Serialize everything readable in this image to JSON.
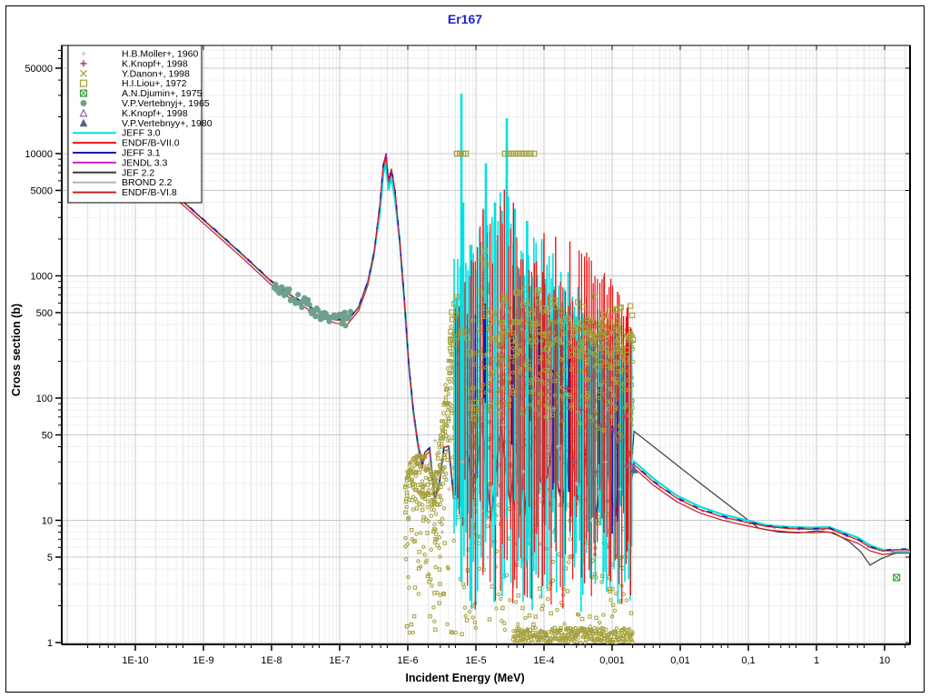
{
  "title": {
    "text": "Er167",
    "color": "#2222CC"
  },
  "axes": {
    "x": {
      "label": "Incident Energy (MeV)",
      "scale": "log",
      "range_log10": [
        -11.08,
        1.373
      ],
      "tick_labels": [
        "1E-10",
        "1E-9",
        "1E-8",
        "1E-7",
        "1E-6",
        "1E-5",
        "1E-4",
        "0,001",
        "0,01",
        "0,1",
        "1",
        "10"
      ],
      "tick_values": [
        1e-10,
        1e-09,
        1e-08,
        1e-07,
        1e-06,
        1e-05,
        0.0001,
        0.001,
        0.01,
        0.1,
        1,
        10
      ]
    },
    "y": {
      "label": "Cross section (b)",
      "scale": "log",
      "range_log10": [
        -0.0149,
        4.885
      ],
      "tick_labels": [
        "50000",
        "10000",
        "5000",
        "1000",
        "500",
        "100",
        "50",
        "10",
        "5",
        "1"
      ],
      "tick_values": [
        50000,
        10000,
        5000,
        1000,
        500,
        100,
        50,
        10,
        5,
        1
      ]
    }
  },
  "legend": {
    "entries": [
      {
        "label": "H.B.Moller+, 1960",
        "type": "marker",
        "marker": "plus-small",
        "color": "#B8B8B8"
      },
      {
        "label": "K.Knopf+, 1998",
        "type": "marker",
        "marker": "plus",
        "color": "#B0485C"
      },
      {
        "label": "Y.Danon+, 1998",
        "type": "marker",
        "marker": "x",
        "color": "#A3A03C"
      },
      {
        "label": "H.I.Liou+, 1972",
        "type": "marker",
        "marker": "square-open",
        "color": "#A3A03C"
      },
      {
        "label": "A.N.Djumin+, 1975",
        "type": "marker",
        "marker": "square-x",
        "color": "#3FA03F"
      },
      {
        "label": "V.P.Vertebnyj+, 1965",
        "type": "marker",
        "marker": "circle-fill",
        "color": "#6FA08F"
      },
      {
        "label": "K.Knopf+, 1998",
        "type": "marker",
        "marker": "tri-open",
        "color": "#9060B0"
      },
      {
        "label": "V.P.Vertebnyy+, 1980",
        "type": "marker",
        "marker": "tri-fill",
        "color": "#50648E"
      },
      {
        "label": "JEFF 3.0",
        "type": "line",
        "color": "#00E0E0"
      },
      {
        "label": "ENDF/B-VII.0",
        "type": "line",
        "color": "#EE1111"
      },
      {
        "label": "JEFF 3.1",
        "type": "line",
        "color": "#1515B5"
      },
      {
        "label": "JENDL 3.3",
        "type": "line",
        "color": "#CC22CC"
      },
      {
        "label": "JEF 2.2",
        "type": "line",
        "color": "#3C3C3C"
      },
      {
        "label": "BROND 2.2",
        "type": "line",
        "color": "#B5B5B5"
      },
      {
        "label": "ENDF/B-VI.8",
        "type": "line",
        "color": "#C42020"
      }
    ]
  },
  "chart_data": {
    "type": "line+scatter",
    "title": "Er167",
    "xlabel": "Incident Energy (MeV)",
    "ylabel": "Cross section (b)",
    "xlim": [
      8.3e-12,
      23.6
    ],
    "ylim": [
      0.97,
      76700
    ],
    "grid": "log-log, minor gridlines at 2 and 5 per decade",
    "legend_position": "top-left inside plot",
    "rng_seed": 987654321,
    "backbone_shared_by_libraries": [
      [
        2e-10,
        6400
      ],
      [
        5.2e-10,
        3970
      ],
      [
        1.63e-09,
        2254
      ],
      [
        4.1e-09,
        1420
      ],
      [
        1e-08,
        895
      ],
      [
        1.9e-08,
        695
      ],
      [
        3.5e-08,
        563
      ],
      [
        5.6e-08,
        483
      ],
      [
        8.8e-08,
        436
      ],
      [
        1.32e-07,
        432
      ],
      [
        1.9e-07,
        554
      ],
      [
        2.6e-07,
        895
      ],
      [
        3.2e-07,
        1550
      ],
      [
        3.9e-07,
        3840
      ],
      [
        4.37e-07,
        8000
      ],
      [
        4.8e-07,
        10000
      ],
      [
        5.2e-07,
        5900
      ],
      [
        5.75e-07,
        7480
      ],
      [
        6.5e-07,
        4950
      ],
      [
        7.6e-07,
        1930
      ],
      [
        8.9e-07,
        635
      ],
      [
        1.03e-06,
        192
      ],
      [
        1.2e-06,
        81
      ],
      [
        1.4e-06,
        43
      ],
      [
        1.63e-06,
        28
      ]
    ],
    "resonance_floor": {
      "le": [
        -5.75,
        -2.72
      ],
      "ls_base": 1.42,
      "amp": 0.28,
      "step": 0.07
    },
    "series": [
      {
        "name": "JEFF 3.0",
        "color": "#00E0E0",
        "width": 2.2,
        "high_energy": [
          [
            0.0021,
            30.2
          ],
          [
            0.0041,
            21.8
          ],
          [
            0.0088,
            16.0
          ],
          [
            0.019,
            13.0
          ],
          [
            0.041,
            11.2
          ],
          [
            0.088,
            10.1
          ],
          [
            0.19,
            9.1
          ],
          [
            0.41,
            8.8
          ],
          [
            0.885,
            8.7
          ],
          [
            1.54,
            8.8
          ],
          [
            2.59,
            7.9
          ],
          [
            4.1,
            7.2
          ],
          [
            6.12,
            6.25
          ],
          [
            9.4,
            5.73
          ],
          [
            14.0,
            5.54
          ],
          [
            23.6,
            5.54
          ]
        ],
        "peak_value": 8500
      },
      {
        "name": "ENDF/B-VII.0",
        "color": "#EE1111",
        "width": 1.3,
        "high_energy": [
          [
            0.0021,
            28.5
          ],
          [
            0.0041,
            20.5
          ],
          [
            0.0088,
            15.2
          ],
          [
            0.019,
            12.3
          ],
          [
            0.041,
            10.7
          ],
          [
            0.088,
            9.7
          ],
          [
            0.19,
            8.9
          ],
          [
            0.41,
            8.55
          ],
          [
            0.885,
            8.45
          ],
          [
            1.54,
            8.55
          ],
          [
            2.59,
            7.6
          ],
          [
            4.1,
            6.9
          ],
          [
            6.12,
            6.0
          ],
          [
            9.4,
            5.6
          ],
          [
            14.0,
            5.75
          ],
          [
            23.6,
            5.75
          ]
        ],
        "peak_value": 10000
      },
      {
        "name": "JEFF 3.1",
        "color": "#1515B5",
        "width": 1.3,
        "dash": "6 11",
        "overlay_of": "ENDF/B-VII.0"
      },
      {
        "name": "JENDL 3.3",
        "color": "#CC22CC",
        "width": 1.2,
        "dash": "3 24",
        "overlay_of": "ENDF/B-VII.0"
      },
      {
        "name": "JEF 2.2",
        "color": "#3C3C3C",
        "width": 1.2,
        "high_energy": [
          [
            0.0021,
            53.5
          ],
          [
            0.019,
            20.4
          ],
          [
            0.14,
            8.65
          ],
          [
            0.284,
            8.0
          ],
          [
            0.558,
            7.9
          ],
          [
            1.03,
            8.2
          ],
          [
            1.79,
            7.9
          ],
          [
            3.02,
            6.7
          ],
          [
            4.5,
            5.5
          ],
          [
            6.12,
            4.3
          ],
          [
            8.85,
            4.85
          ],
          [
            14.0,
            5.35
          ],
          [
            23.6,
            5.6
          ]
        ]
      },
      {
        "name": "BROND 2.2",
        "color": "#B5B5B5",
        "width": 1.0,
        "overlay_of": "JEFF 3.0"
      },
      {
        "name": "ENDF/B-VI.8",
        "color": "#C42020",
        "width": 1.2,
        "offset_dec": -0.028,
        "overlay_of": "ENDF/B-VII.0"
      }
    ],
    "resonance_scatter_envelope": {
      "note": "H.I.Liou+ 1972 / Y.Danon+ 1998 dense resolved-resonance point cloud, 1.0e-6 to 2e-3 MeV, values ~1 b to ~700 b with saturated points at 10000 b",
      "marker_color": "#A3A03C",
      "regions": [
        {
          "name": "lobe1",
          "le": [
            -6.03,
            -5.6
          ],
          "top": [
            [
              -6.03,
              1.4
            ],
            [
              -5.97,
              1.5
            ],
            [
              -5.87,
              1.55
            ],
            [
              -5.72,
              1.54
            ],
            [
              -5.6,
              1.36
            ]
          ],
          "perCol": 6,
          "spread": 0.55,
          "sparse": 2
        },
        {
          "name": "mountain-6eV",
          "le": [
            -5.6,
            -5.0
          ],
          "top": [
            [
              -5.6,
              1.36
            ],
            [
              -5.45,
              2.06
            ],
            [
              -5.36,
              2.62
            ],
            [
              -5.28,
              2.77
            ],
            [
              -5.19,
              2.8
            ],
            [
              -5.12,
              2.58
            ],
            [
              -5.05,
              1.95
            ],
            [
              -5.0,
              1.8
            ]
          ],
          "perCol": 9,
          "spread": 0.9,
          "sparse": 2
        },
        {
          "name": "col2",
          "le": [
            -5.0,
            -4.8
          ],
          "top": [
            [
              -5.0,
              1.8
            ],
            [
              -4.95,
              2.65
            ],
            [
              -4.91,
              3.1
            ],
            [
              -4.87,
              3.12
            ],
            [
              -4.83,
              2.95
            ],
            [
              -4.8,
              2.45
            ]
          ],
          "perCol": 9,
          "spread": 0.9,
          "sparse": 2
        },
        {
          "name": "gap",
          "le": [
            -4.8,
            -4.64
          ],
          "top": [
            [
              -4.8,
              2.45
            ],
            [
              -4.72,
              2.4
            ],
            [
              -4.64,
              2.5
            ]
          ],
          "perCol": 2,
          "spread": 1.6,
          "sparse": 1
        },
        {
          "name": "main-rrr",
          "le": [
            -4.64,
            -2.693
          ],
          "top": [
            [
              -4.64,
              2.62
            ],
            [
              -4.55,
              2.82
            ],
            [
              -4.45,
              2.68
            ],
            [
              -4.39,
              2.75
            ],
            [
              -4.19,
              2.78
            ],
            [
              -3.99,
              2.73
            ],
            [
              -3.72,
              2.7
            ],
            [
              -3.45,
              2.66
            ],
            [
              -3.19,
              2.63
            ],
            [
              -2.92,
              2.59
            ],
            [
              -2.693,
              2.56
            ]
          ],
          "perCol": 9,
          "spread": 1.1,
          "sparse": 3
        }
      ],
      "bottom_band": {
        "le": [
          -4.45,
          -2.7
        ],
        "ls": [
          0.0,
          0.12
        ],
        "perCol": 3
      },
      "sprinkle_on_top": 260,
      "big_squares": 130
    },
    "spikes": {
      "note": "JEFF3.0 (cyan) and ENDF/B-VII.0 (red) resonance spikes above the point cloud",
      "env": [
        [
          -5.32,
          3.15
        ],
        [
          -5.05,
          3.35
        ],
        [
          -4.9,
          3.75
        ],
        [
          -4.75,
          3.55
        ],
        [
          -4.6,
          3.95
        ],
        [
          -4.45,
          3.5
        ],
        [
          -4.3,
          3.4
        ],
        [
          -4.1,
          3.32
        ],
        [
          -3.9,
          3.27
        ],
        [
          -3.7,
          3.12
        ],
        [
          -3.5,
          2.97
        ],
        [
          -3.3,
          2.87
        ],
        [
          -3.1,
          2.77
        ],
        [
          -2.9,
          2.62
        ],
        [
          -2.72,
          2.45
        ]
      ],
      "cyan_step": 0.028,
      "red_step": 0.034,
      "specials_cyan": [
        [
          -5.213,
          4.49
        ],
        [
          -5.187,
          3.6
        ],
        [
          -4.853,
          3.92
        ],
        [
          -4.72,
          3.6
        ],
        [
          -4.547,
          4.29
        ],
        [
          -4.43,
          3.55
        ],
        [
          -4.25,
          3.45
        ]
      ],
      "specials_red": [
        [
          -4.45,
          3.6
        ],
        [
          -4.0,
          3.35
        ],
        [
          -3.83,
          3.32
        ],
        [
          -3.62,
          3.28
        ],
        [
          -3.37,
          3.12
        ],
        [
          -3.12,
          3.0
        ],
        [
          -2.92,
          2.87
        ],
        [
          -2.78,
          2.74
        ]
      ],
      "blue_count": 10,
      "dark_count": 4
    },
    "experimental": [
      {
        "label": "H.B.Moller+, 1960",
        "marker": "plus-small",
        "color": "#B8B8B8",
        "points": [
          [
            2.5e-06,
            45
          ],
          [
            4e-06,
            18
          ],
          [
            6.3e-06,
            30
          ],
          [
            1.2e-05,
            12
          ],
          [
            2.5e-05,
            60
          ],
          [
            5e-05,
            25
          ],
          [
            9e-05,
            15
          ],
          [
            0.00016,
            40
          ],
          [
            0.0003,
            20
          ],
          [
            0.0005,
            10
          ],
          [
            0.0008,
            30
          ],
          [
            0.0013,
            18
          ],
          [
            3.2e-06,
            8
          ],
          [
            1.5e-05,
            5
          ],
          [
            6e-05,
            7
          ],
          [
            0.00042,
            6
          ]
        ]
      },
      {
        "label": "K.Knopf+, 1998",
        "marker": "plus",
        "color": "#B0485C",
        "points": [
          [
            0.00022,
            120
          ],
          [
            0.00035,
            80
          ],
          [
            0.0005,
            150
          ],
          [
            0.0007,
            60
          ],
          [
            0.00095,
            100
          ],
          [
            0.0012,
            45
          ],
          [
            0.0015,
            70
          ],
          [
            0.0018,
            35
          ],
          [
            0.00028,
            30
          ],
          [
            0.0006,
            25
          ],
          [
            0.00105,
            55
          ],
          [
            0.0016,
            28
          ]
        ]
      },
      {
        "label": "Y.Danon+, 1998",
        "marker": "x",
        "color": "#A3A03C",
        "gen": {
          "le": [
            -4.6,
            -2.75
          ],
          "n": 25,
          "below_top": 0.5
        }
      },
      {
        "label": "H.I.Liou+, 1972",
        "marker": "square-open",
        "color": "#A3A03C",
        "saturated_value": 10000,
        "saturated_rows": [
          [
            5.25e-06,
            5.8e-06,
            6.5e-06,
            7.1e-06
          ],
          [
            2.67e-05,
            2.97e-05,
            3.31e-05,
            3.69e-05,
            4.1e-05,
            4.57e-05,
            5.09e-05,
            5.66e-05,
            6.31e-05,
            7.13e-05
          ]
        ]
      },
      {
        "label": "A.N.Djumin+, 1975",
        "marker": "square-x",
        "color": "#3FA03F",
        "points": [
          [
            15.0,
            3.4
          ]
        ]
      },
      {
        "label": "V.P.Vertebnyj+, 1965",
        "marker": "circle-fill",
        "color": "#6FA08F",
        "gen": {
          "le": [
            -7.96,
            -6.84
          ],
          "n": 62,
          "jitter": 0.05
        },
        "follows": "backbone 1/v dip, ~700 b down to ~440 b"
      },
      {
        "label": "K.Knopf+, 1998",
        "marker": "tri-open",
        "color": "#9060B0",
        "points": [
          [
            0.00185,
            29
          ]
        ]
      },
      {
        "label": "V.P.Vertebnyy+, 1980",
        "marker": "tri-fill",
        "color": "#50648E",
        "points": [
          [
            0.0021,
            26
          ]
        ]
      }
    ],
    "colors": {
      "grid_major": "#C9C9C9",
      "grid_strong_minor": "#E2E2E2",
      "grid_minor": "#EFEFEF",
      "frame": "#000000",
      "background": "#FFFFFF",
      "olive": "#A3A03C",
      "teal": "#6FA08F"
    }
  }
}
